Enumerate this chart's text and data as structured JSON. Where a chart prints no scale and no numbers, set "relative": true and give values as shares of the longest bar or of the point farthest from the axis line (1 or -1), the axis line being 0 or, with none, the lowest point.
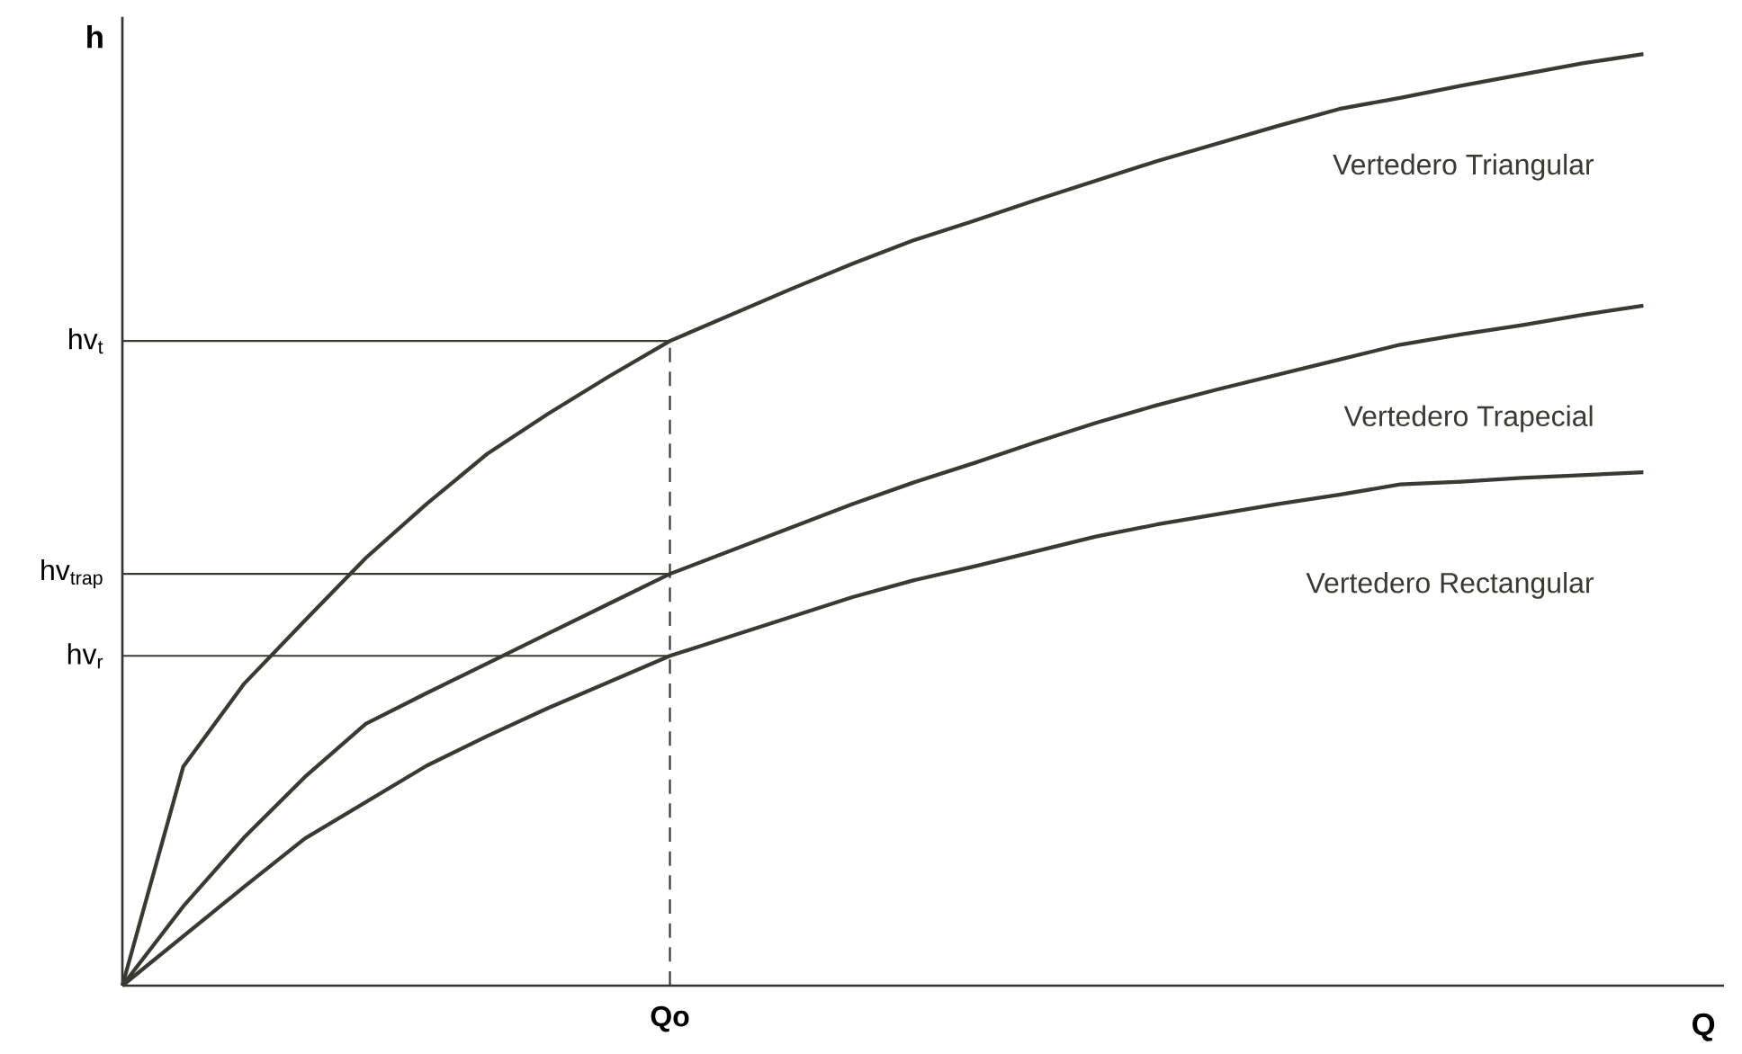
{
  "chart_data": {
    "type": "line",
    "relative": true,
    "xlabel": "Q",
    "ylabel": "h",
    "categories": [
      null,
      null,
      null,
      null,
      null,
      null,
      null,
      null,
      null,
      null,
      null,
      null,
      null,
      null,
      null,
      null,
      null,
      null,
      null,
      null,
      null,
      null,
      null,
      null,
      null,
      null
    ],
    "series": [
      {
        "name": "Vertedero Triangular",
        "color": "#3a3a32",
        "values": [
          0,
          0.235,
          0.324,
          0.392,
          0.459,
          0.517,
          0.571,
          0.614,
          0.654,
          0.692,
          0.72,
          0.748,
          0.775,
          0.8,
          0.821,
          0.843,
          0.864,
          0.885,
          0.904,
          0.923,
          0.941,
          0.953,
          0.966,
          0.978,
          0.99,
          1
        ]
      },
      {
        "name": "Vertedero Trapecial",
        "color": "#3a3a32",
        "values": [
          0,
          0.085,
          0.159,
          0.224,
          0.281,
          0.314,
          0.346,
          0.378,
          0.41,
          0.442,
          0.467,
          0.492,
          0.517,
          0.54,
          0.561,
          0.583,
          0.604,
          0.623,
          0.64,
          0.656,
          0.672,
          0.688,
          0.699,
          0.709,
          0.72,
          0.73
        ]
      },
      {
        "name": "Vertedero Rectangular",
        "color": "#3a3a32",
        "values": [
          0,
          0.053,
          0.106,
          0.158,
          0.197,
          0.236,
          0.268,
          0.298,
          0.326,
          0.354,
          0.375,
          0.396,
          0.417,
          0.435,
          0.45,
          0.466,
          0.482,
          0.495,
          0.506,
          0.517,
          0.527,
          0.538,
          0.541,
          0.545,
          0.548,
          0.551
        ]
      }
    ],
    "annotations": [
      "Qo"
    ],
    "ref_lines": [
      {
        "axis": "y",
        "value": 0.692,
        "label": "hv$_{t}$",
        "color": "#3a3a32"
      },
      {
        "axis": "y",
        "value": 0.442,
        "label": "hv$_{trap}$",
        "color": "#3a3a32"
      },
      {
        "axis": "y",
        "value": 0.354,
        "label": "hv$_{r}$",
        "color": "#3a3a32"
      }
    ]
  }
}
